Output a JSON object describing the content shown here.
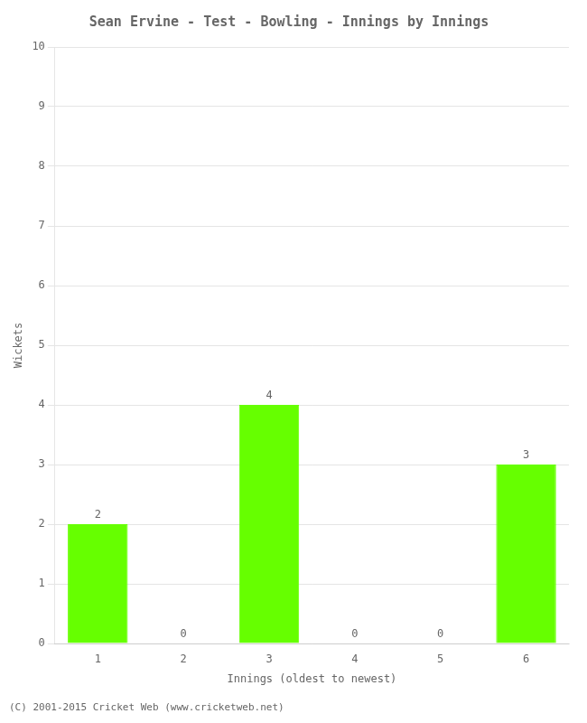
{
  "chart_data": {
    "type": "bar",
    "title": "Sean Ervine - Test - Bowling - Innings by Innings",
    "x_label": "Innings (oldest to newest)",
    "y_label": "Wickets",
    "categories": [
      "1",
      "2",
      "3",
      "4",
      "5",
      "6"
    ],
    "values": [
      2,
      0,
      4,
      0,
      0,
      3
    ],
    "color": "#66ff00",
    "ylim": [
      0,
      10
    ],
    "yticks": [
      0,
      1,
      2,
      3,
      4,
      5,
      6,
      7,
      8,
      9,
      10
    ],
    "grid": true,
    "data_labels": true,
    "annotations": [
      "(C) 2001-2015 Cricket Web (www.cricketweb.net)"
    ]
  }
}
